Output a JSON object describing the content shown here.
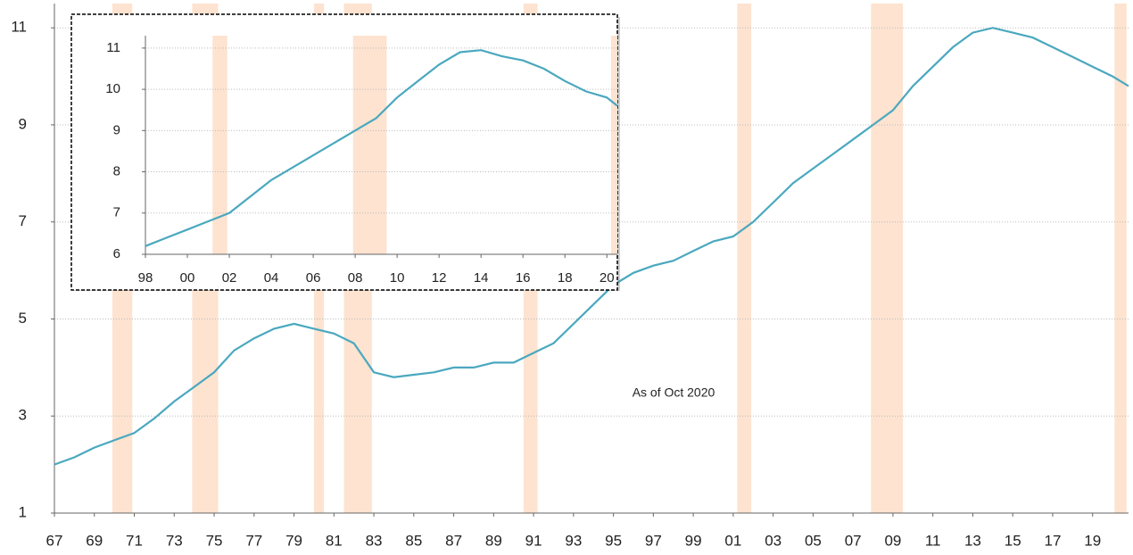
{
  "chart_data": [
    {
      "type": "line",
      "color": "#4aa8bf",
      "band_color": "#fde3d0",
      "grid": true,
      "annotation": "As of Oct 2020",
      "xlim": [
        1967,
        2020.8
      ],
      "ylim": [
        1,
        11.5
      ],
      "yticks": [
        1,
        3,
        5,
        7,
        9,
        11
      ],
      "xticks": [
        {
          "value": 1967,
          "label": "67"
        },
        {
          "value": 1969,
          "label": "69"
        },
        {
          "value": 1971,
          "label": "71"
        },
        {
          "value": 1973,
          "label": "73"
        },
        {
          "value": 1975,
          "label": "75"
        },
        {
          "value": 1977,
          "label": "77"
        },
        {
          "value": 1979,
          "label": "79"
        },
        {
          "value": 1981,
          "label": "81"
        },
        {
          "value": 1983,
          "label": "83"
        },
        {
          "value": 1985,
          "label": "85"
        },
        {
          "value": 1987,
          "label": "87"
        },
        {
          "value": 1989,
          "label": "89"
        },
        {
          "value": 1991,
          "label": "91"
        },
        {
          "value": 1993,
          "label": "93"
        },
        {
          "value": 1995,
          "label": "95"
        },
        {
          "value": 1997,
          "label": "97"
        },
        {
          "value": 1999,
          "label": "99"
        },
        {
          "value": 2001,
          "label": "01"
        },
        {
          "value": 2003,
          "label": "03"
        },
        {
          "value": 2005,
          "label": "05"
        },
        {
          "value": 2007,
          "label": "07"
        },
        {
          "value": 2009,
          "label": "09"
        },
        {
          "value": 2011,
          "label": "11"
        },
        {
          "value": 2013,
          "label": "13"
        },
        {
          "value": 2015,
          "label": "15"
        },
        {
          "value": 2017,
          "label": "17"
        },
        {
          "value": 2019,
          "label": "19"
        }
      ],
      "recessions": [
        [
          1969.9,
          1970.9
        ],
        [
          1973.9,
          1975.2
        ],
        [
          1980.0,
          1980.5
        ],
        [
          1981.5,
          1982.9
        ],
        [
          1990.5,
          1991.2
        ],
        [
          2001.2,
          2001.9
        ],
        [
          2007.9,
          2009.5
        ],
        [
          2020.1,
          2020.7
        ]
      ],
      "x": [
        1967,
        1968,
        1969,
        1970,
        1971,
        1972,
        1973,
        1974,
        1975,
        1976,
        1977,
        1978,
        1979,
        1980,
        1981,
        1982,
        1983,
        1984,
        1985,
        1986,
        1987,
        1988,
        1989,
        1990,
        1991,
        1992,
        1993,
        1994,
        1995,
        1996,
        1997,
        1998,
        1999,
        2000,
        2001,
        2002,
        2003,
        2004,
        2005,
        2006,
        2007,
        2008,
        2009,
        2010,
        2011,
        2012,
        2013,
        2014,
        2015,
        2016,
        2017,
        2018,
        2019,
        2020,
        2020.8
      ],
      "values": [
        2.0,
        2.15,
        2.35,
        2.5,
        2.65,
        2.95,
        3.3,
        3.6,
        3.9,
        4.35,
        4.6,
        4.8,
        4.9,
        4.8,
        4.7,
        4.5,
        3.9,
        3.8,
        3.85,
        3.9,
        4.0,
        4.0,
        4.1,
        4.1,
        4.3,
        4.5,
        4.9,
        5.3,
        5.7,
        5.95,
        6.1,
        6.2,
        6.4,
        6.6,
        6.7,
        7.0,
        7.4,
        7.8,
        8.1,
        8.4,
        8.7,
        9.0,
        9.3,
        9.8,
        10.2,
        10.6,
        10.9,
        11.0,
        10.9,
        10.8,
        10.6,
        10.4,
        10.2,
        10.0,
        9.8
      ]
    },
    {
      "type": "line",
      "color": "#4aa8bf",
      "band_color": "#fde3d0",
      "grid": true,
      "xlim": [
        1998,
        2020.5
      ],
      "ylim": [
        6,
        11.3
      ],
      "yticks": [
        6,
        7,
        8,
        9,
        10,
        11
      ],
      "xticks": [
        {
          "value": 1998,
          "label": "98"
        },
        {
          "value": 2000,
          "label": "00"
        },
        {
          "value": 2002,
          "label": "02"
        },
        {
          "value": 2004,
          "label": "04"
        },
        {
          "value": 2006,
          "label": "06"
        },
        {
          "value": 2008,
          "label": "08"
        },
        {
          "value": 2010,
          "label": "10"
        },
        {
          "value": 2012,
          "label": "12"
        },
        {
          "value": 2014,
          "label": "14"
        },
        {
          "value": 2016,
          "label": "16"
        },
        {
          "value": 2018,
          "label": "18"
        },
        {
          "value": 2020,
          "label": "20"
        }
      ],
      "recessions": [
        [
          2001.2,
          2001.9
        ],
        [
          2007.9,
          2009.5
        ],
        [
          2020.2,
          2020.5
        ]
      ],
      "x": [
        1998,
        1999,
        2000,
        2001,
        2002,
        2003,
        2004,
        2005,
        2006,
        2007,
        2008,
        2009,
        2010,
        2011,
        2012,
        2013,
        2014,
        2015,
        2016,
        2017,
        2018,
        2019,
        2020,
        2020.5
      ],
      "values": [
        6.2,
        6.4,
        6.6,
        6.8,
        7.0,
        7.4,
        7.8,
        8.1,
        8.4,
        8.7,
        9.0,
        9.3,
        9.8,
        10.2,
        10.6,
        10.9,
        10.95,
        10.8,
        10.7,
        10.5,
        10.2,
        9.95,
        9.8,
        9.6
      ]
    }
  ]
}
